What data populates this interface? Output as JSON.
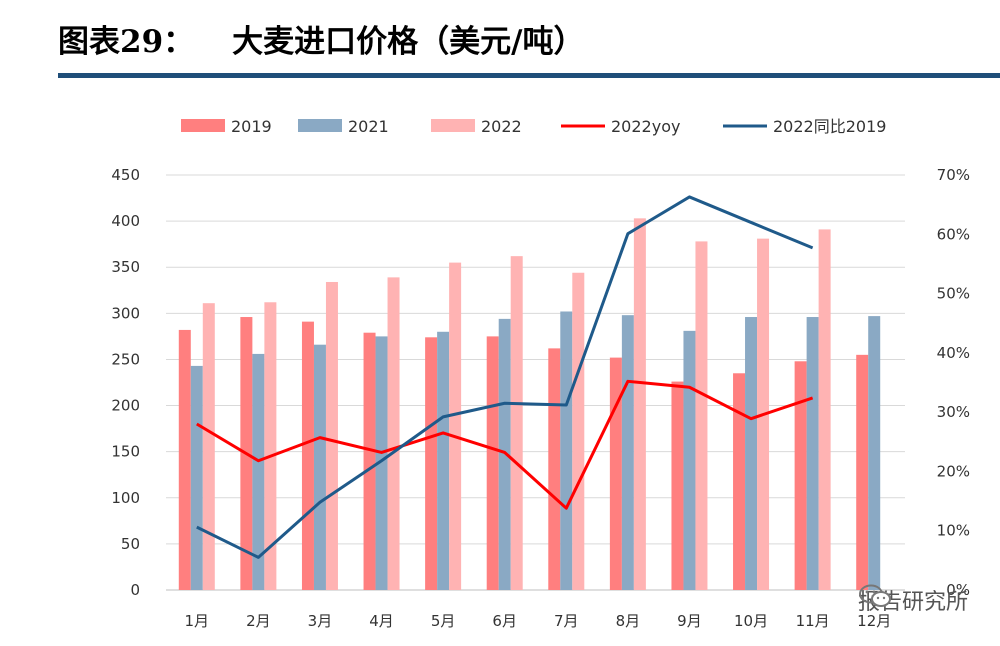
{
  "header": {
    "figure_label": "图表29：",
    "title": "大麦进口价格（美元/吨）"
  },
  "watermark": {
    "text": "报告研究所",
    "icon": "wechat-icon"
  },
  "colors": {
    "rule": "#1f4e79",
    "grid": "#d9d9d9"
  },
  "chart_data": {
    "type": "bar",
    "categories": [
      "1月",
      "2月",
      "3月",
      "4月",
      "5月",
      "6月",
      "7月",
      "8月",
      "9月",
      "10月",
      "11月",
      "12月"
    ],
    "series": [
      {
        "name": "2019",
        "type": "bar",
        "axis": "left",
        "color": "#ff7f7f",
        "values": [
          282,
          296,
          291,
          279,
          274,
          275,
          262,
          252,
          226,
          235,
          248,
          255
        ]
      },
      {
        "name": "2021",
        "type": "bar",
        "axis": "left",
        "color": "#8aa9c4",
        "values": [
          243,
          256,
          266,
          275,
          280,
          294,
          302,
          298,
          281,
          296,
          296,
          297
        ]
      },
      {
        "name": "2022",
        "type": "bar",
        "axis": "left",
        "color": "#ffb3b3",
        "values": [
          311,
          312,
          334,
          339,
          355,
          362,
          344,
          403,
          378,
          381,
          391,
          null
        ]
      },
      {
        "name": "2022yoy",
        "type": "line",
        "axis": "right",
        "color": "#ff0000",
        "values": [
          28.0,
          21.8,
          25.7,
          23.2,
          26.5,
          23.2,
          13.8,
          35.2,
          34.2,
          28.9,
          32.4,
          null
        ]
      },
      {
        "name": "2022同比2019",
        "type": "line",
        "axis": "right",
        "color": "#1f5a8a",
        "values": [
          10.6,
          5.5,
          14.8,
          21.8,
          29.2,
          31.5,
          31.2,
          60.1,
          66.3,
          62.0,
          57.7,
          null
        ]
      }
    ],
    "y_left": {
      "min": 0,
      "max": 450,
      "ticks": [
        "0",
        "50",
        "100",
        "150",
        "200",
        "250",
        "300",
        "350",
        "400",
        "450"
      ]
    },
    "y_right": {
      "min": 0,
      "max": 70,
      "ticks": [
        "0%",
        "10%",
        "20%",
        "30%",
        "40%",
        "50%",
        "60%",
        "70%"
      ]
    },
    "grid": true,
    "legend_position": "top"
  }
}
